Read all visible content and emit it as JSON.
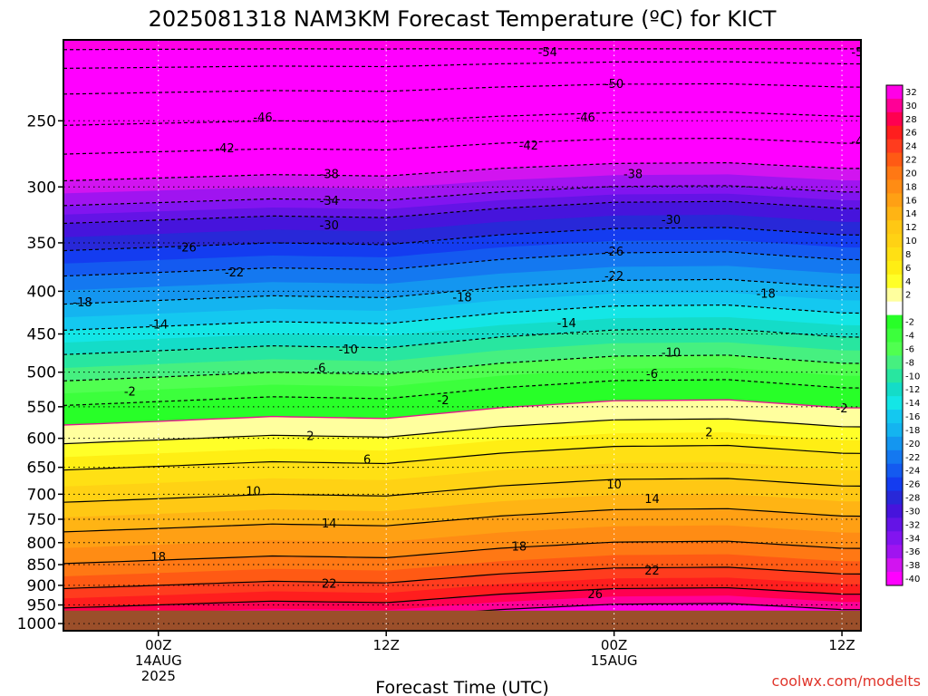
{
  "chart_data": {
    "type": "heatmap",
    "title": "2025081318 NAM3KM Forecast Temperature (ºC) for KICT",
    "xlabel": "Forecast Time (UTC)",
    "ylabel": "",
    "credit": "coolwx.com/modelts",
    "y_scale": "log",
    "y_reversed": true,
    "ylim": [
      1020,
      200
    ],
    "xlim": [
      -5,
      37
    ],
    "x_unit": "hours after 2025-08-14 00Z",
    "yticks": [
      250,
      300,
      350,
      400,
      450,
      500,
      550,
      600,
      650,
      700,
      750,
      800,
      850,
      900,
      950,
      1000
    ],
    "xticks": [
      {
        "hour": 0,
        "lines": [
          "00Z",
          "14AUG",
          "2025"
        ]
      },
      {
        "hour": 12,
        "lines": [
          "12Z"
        ]
      },
      {
        "hour": 24,
        "lines": [
          "00Z",
          "15AUG"
        ]
      },
      {
        "hour": 36,
        "lines": [
          "12Z"
        ]
      },
      {
        "hour": 48,
        "lines": [
          "00Z",
          "16AUG"
        ]
      }
    ],
    "surface_pressure": 965,
    "surface_color": "#9b4f2a",
    "contour_colors": {
      "neg": "#000000",
      "zero": "#e0198c",
      "pos": "#000000"
    },
    "colorbar": {
      "labels": [
        "32",
        "30",
        "28",
        "26",
        "24",
        "22",
        "20",
        "18",
        "16",
        "14",
        "12",
        "10",
        "8",
        "6",
        "4",
        "2",
        "",
        "-2",
        "-4",
        "-6",
        "-8",
        "-10",
        "-12",
        "-14",
        "-16",
        "-18",
        "-20",
        "-22",
        "-24",
        "-26",
        "-28",
        "-30",
        "-32",
        "-34",
        "-36",
        "-38",
        "-40"
      ],
      "colors": [
        "#ff00e6",
        "#ff0096",
        "#ff0050",
        "#ff1e1e",
        "#ff3c1e",
        "#ff5a14",
        "#ff7814",
        "#ff8c14",
        "#ffa014",
        "#ffb414",
        "#ffc814",
        "#ffd214",
        "#ffe014",
        "#ffee14",
        "#ffff28",
        "#ffff9e",
        "#ffffff",
        "#28ff28",
        "#3cff3c",
        "#50ff50",
        "#46f080",
        "#28e6a0",
        "#14dcc8",
        "#14e6e6",
        "#14c8f0",
        "#14b4f0",
        "#1496f0",
        "#1478f0",
        "#145af0",
        "#143cf0",
        "#2828d8",
        "#4614dc",
        "#6414e6",
        "#8214f0",
        "#a014f0",
        "#d214f0",
        "#ff00ff"
      ]
    },
    "profile": [
      {
        "p": 200,
        "t": -60
      },
      {
        "p": 215,
        "t": -54
      },
      {
        "p": 230,
        "t": -50
      },
      {
        "p": 250,
        "t": -46
      },
      {
        "p": 270,
        "t": -42
      },
      {
        "p": 290,
        "t": -38
      },
      {
        "p": 310,
        "t": -34
      },
      {
        "p": 325,
        "t": -30
      },
      {
        "p": 350,
        "t": -26
      },
      {
        "p": 375,
        "t": -22
      },
      {
        "p": 405,
        "t": -18
      },
      {
        "p": 435,
        "t": -14
      },
      {
        "p": 465,
        "t": -10
      },
      {
        "p": 500,
        "t": -6
      },
      {
        "p": 535,
        "t": -2
      },
      {
        "p": 565,
        "t": 0
      },
      {
        "p": 595,
        "t": 2
      },
      {
        "p": 640,
        "t": 6
      },
      {
        "p": 700,
        "t": 10
      },
      {
        "p": 760,
        "t": 14
      },
      {
        "p": 830,
        "t": 18
      },
      {
        "p": 890,
        "t": 22
      },
      {
        "p": 940,
        "t": 26
      },
      {
        "p": 1000,
        "t": 32
      }
    ],
    "diurnal_shift_hpa": [
      {
        "hour": -5,
        "shift": 18
      },
      {
        "hour": 0,
        "shift": 10
      },
      {
        "hour": 6,
        "shift": 0
      },
      {
        "hour": 12,
        "shift": 4
      },
      {
        "hour": 18,
        "shift": -18
      },
      {
        "hour": 24,
        "shift": -32
      },
      {
        "hour": 30,
        "shift": -34
      },
      {
        "hour": 36,
        "shift": -18
      },
      {
        "hour": 42,
        "shift": -16
      },
      {
        "hour": 48,
        "shift": -28
      },
      {
        "hour": 53,
        "shift": -26
      }
    ],
    "contour_labels": [
      {
        "value": "-54",
        "hour": 20.5,
        "p": 207
      },
      {
        "value": "-54",
        "hour": 37,
        "p": 207
      },
      {
        "value": "-50",
        "hour": 24,
        "p": 226
      },
      {
        "value": "-50",
        "hour": 40,
        "p": 227
      },
      {
        "value": "-46",
        "hour": 5.5,
        "p": 248
      },
      {
        "value": "-46",
        "hour": 22.5,
        "p": 248
      },
      {
        "value": "-46",
        "hour": 41,
        "p": 247
      },
      {
        "value": "-42",
        "hour": 3.5,
        "p": 270
      },
      {
        "value": "-42",
        "hour": 19.5,
        "p": 268
      },
      {
        "value": "-42",
        "hour": 37,
        "p": 265
      },
      {
        "value": "-38",
        "hour": 9,
        "p": 290
      },
      {
        "value": "-38",
        "hour": 25,
        "p": 290
      },
      {
        "value": "-38",
        "hour": 44,
        "p": 285
      },
      {
        "value": "-34",
        "hour": 9,
        "p": 312
      },
      {
        "value": "-34",
        "hour": 44,
        "p": 306
      },
      {
        "value": "-30",
        "hour": 9,
        "p": 334
      },
      {
        "value": "-30",
        "hour": 27,
        "p": 329
      },
      {
        "value": "-30",
        "hour": 42.5,
        "p": 331
      },
      {
        "value": "-26",
        "hour": 1.5,
        "p": 355
      },
      {
        "value": "-26",
        "hour": 24,
        "p": 359
      },
      {
        "value": "-26",
        "hour": 42,
        "p": 352
      },
      {
        "value": "-22",
        "hour": 4,
        "p": 380
      },
      {
        "value": "-22",
        "hour": 24,
        "p": 384
      },
      {
        "value": "-22",
        "hour": 41,
        "p": 377
      },
      {
        "value": "-18",
        "hour": -4,
        "p": 413
      },
      {
        "value": "-18",
        "hour": 16,
        "p": 407
      },
      {
        "value": "-18",
        "hour": 32,
        "p": 403
      },
      {
        "value": "-14",
        "hour": 0,
        "p": 439
      },
      {
        "value": "-14",
        "hour": 21.5,
        "p": 437
      },
      {
        "value": "-14",
        "hour": 39.5,
        "p": 430
      },
      {
        "value": "-10",
        "hour": 10,
        "p": 470
      },
      {
        "value": "-10",
        "hour": 27,
        "p": 474
      },
      {
        "value": "-10",
        "hour": 43,
        "p": 467
      },
      {
        "value": "-6",
        "hour": 8.5,
        "p": 495
      },
      {
        "value": "-6",
        "hour": 26,
        "p": 503
      },
      {
        "value": "-6",
        "hour": 43.5,
        "p": 501
      },
      {
        "value": "-2",
        "hour": -1.5,
        "p": 528
      },
      {
        "value": "-2",
        "hour": 15,
        "p": 541
      },
      {
        "value": "-2",
        "hour": 36,
        "p": 553
      },
      {
        "value": "2",
        "hour": 8,
        "p": 597
      },
      {
        "value": "2",
        "hour": 29,
        "p": 591
      },
      {
        "value": "6",
        "hour": 11,
        "p": 637
      },
      {
        "value": "6",
        "hour": 38,
        "p": 632
      },
      {
        "value": "10",
        "hour": 5,
        "p": 695
      },
      {
        "value": "10",
        "hour": 24,
        "p": 682
      },
      {
        "value": "10",
        "hour": 40,
        "p": 688
      },
      {
        "value": "14",
        "hour": 9,
        "p": 760
      },
      {
        "value": "14",
        "hour": 26,
        "p": 710
      },
      {
        "value": "14",
        "hour": 41.5,
        "p": 712
      },
      {
        "value": "18",
        "hour": 0,
        "p": 833
      },
      {
        "value": "18",
        "hour": 19,
        "p": 810
      },
      {
        "value": "18",
        "hour": 42,
        "p": 768
      },
      {
        "value": "22",
        "hour": 9,
        "p": 897
      },
      {
        "value": "22",
        "hour": 26,
        "p": 865
      },
      {
        "value": "22",
        "hour": 41.5,
        "p": 864
      },
      {
        "value": "26",
        "hour": 23,
        "p": 923
      }
    ]
  }
}
